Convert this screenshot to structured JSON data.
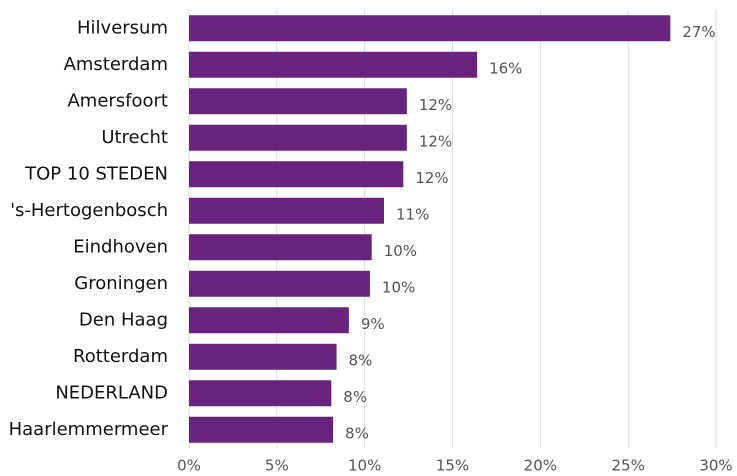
{
  "chart_data": {
    "type": "bar",
    "orientation": "horizontal",
    "categories": [
      "Hilversum",
      "Amsterdam",
      "Amersfoort",
      "Utrecht",
      "TOP 10 STEDEN",
      "'s-Hertogenbosch",
      "Eindhoven",
      "Groningen",
      "Den Haag",
      "Rotterdam",
      "NEDERLAND",
      "Haarlemmermeer"
    ],
    "values": [
      27.4,
      16.4,
      12.4,
      12.4,
      12.2,
      11.1,
      10.4,
      10.3,
      9.1,
      8.4,
      8.1,
      8.2
    ],
    "value_labels": [
      "27%",
      "16%",
      "12%",
      "12%",
      "12%",
      "11%",
      "10%",
      "10%",
      "9%",
      "8%",
      "8%",
      "8%"
    ],
    "color": "#68237f",
    "xlim": [
      0,
      30
    ],
    "xticks": [
      {
        "value": 0,
        "label": "0%"
      },
      {
        "value": 5,
        "label": "5%"
      },
      {
        "value": 10,
        "label": "10%"
      },
      {
        "value": 15,
        "label": "15%"
      },
      {
        "value": 20,
        "label": "20%"
      },
      {
        "value": 25,
        "label": "25%"
      },
      {
        "value": 30,
        "label": "30%"
      }
    ],
    "grid": true
  }
}
